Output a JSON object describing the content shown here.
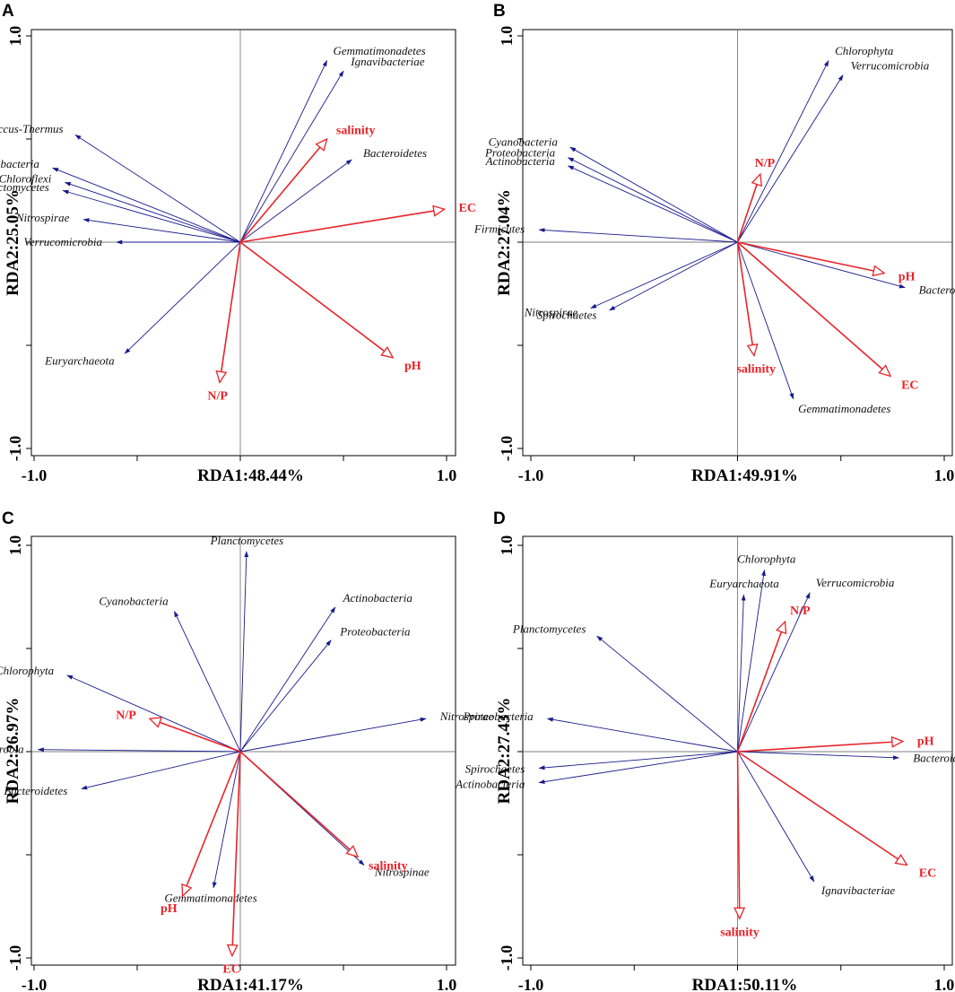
{
  "colors": {
    "species": "#1a1a8c",
    "env": "#e8242a",
    "axis": "#000000"
  },
  "chart_data": [
    {
      "panel": "A",
      "type": "scatter",
      "subtype": "rda_biplot",
      "xlabel": "RDA1:48.44%",
      "ylabel": "RDA2:25.05%",
      "xlim": [
        -1.0,
        1.0
      ],
      "ylim": [
        -1.0,
        1.0
      ],
      "x_tick_labels": [
        "-1.0",
        "1.0"
      ],
      "y_tick_labels": [
        "1.0",
        "-1.0"
      ],
      "species": [
        {
          "name": "Gemmatimonadetes",
          "x": 0.42,
          "y": 0.88
        },
        {
          "name": "Ignavibacteriae",
          "x": 0.5,
          "y": 0.83
        },
        {
          "name": "Deinococcus-Thermus",
          "x": -0.8,
          "y": 0.52
        },
        {
          "name": "Bacteroidetes",
          "x": 0.54,
          "y": 0.4
        },
        {
          "name": "Proteobacteria",
          "x": -0.91,
          "y": 0.36
        },
        {
          "name": "Chloroflexi",
          "x": -0.85,
          "y": 0.29
        },
        {
          "name": "Planctomycetes",
          "x": -0.86,
          "y": 0.25
        },
        {
          "name": "Nitrospirae",
          "x": -0.76,
          "y": 0.11
        },
        {
          "name": "Verrucomicrobia",
          "x": -0.6,
          "y": 0.0
        },
        {
          "name": "Euryarchaeota",
          "x": -0.56,
          "y": -0.54
        }
      ],
      "env": [
        {
          "name": "salinity",
          "x": 0.42,
          "y": 0.5
        },
        {
          "name": "EC",
          "x": 0.99,
          "y": 0.16
        },
        {
          "name": "N/P",
          "x": -0.1,
          "y": -0.68
        },
        {
          "name": "pH",
          "x": 0.74,
          "y": -0.56
        }
      ]
    },
    {
      "panel": "B",
      "type": "scatter",
      "subtype": "rda_biplot",
      "xlabel": "RDA1:49.91%",
      "ylabel": "RDA2:27.04%",
      "xlim": [
        -1.0,
        1.0
      ],
      "ylim": [
        -1.0,
        1.0
      ],
      "x_tick_labels": [
        "-1.0",
        "1.0"
      ],
      "y_tick_labels": [
        "1.0",
        "-1.0"
      ],
      "species": [
        {
          "name": "Chlorophyta",
          "x": 0.44,
          "y": 0.88
        },
        {
          "name": "Verrucomicrobia",
          "x": 0.51,
          "y": 0.81
        },
        {
          "name": "Cyanobacteria",
          "x": -0.81,
          "y": 0.46
        },
        {
          "name": "Proteobacteria",
          "x": -0.82,
          "y": 0.41
        },
        {
          "name": "Actinobacteria",
          "x": -0.82,
          "y": 0.37
        },
        {
          "name": "Firmicutes",
          "x": -0.96,
          "y": 0.06
        },
        {
          "name": "Nitrospirae",
          "x": -0.71,
          "y": -0.32
        },
        {
          "name": "Spirochaetes",
          "x": -0.62,
          "y": -0.33
        },
        {
          "name": "Bacteroidetes",
          "x": 0.81,
          "y": -0.22
        },
        {
          "name": "Gemmatimonadetes",
          "x": 0.27,
          "y": -0.76
        }
      ],
      "env": [
        {
          "name": "N/P",
          "x": 0.11,
          "y": 0.33
        },
        {
          "name": "pH",
          "x": 0.71,
          "y": -0.15
        },
        {
          "name": "salinity",
          "x": 0.08,
          "y": -0.55
        },
        {
          "name": "EC",
          "x": 0.74,
          "y": -0.65
        }
      ]
    },
    {
      "panel": "C",
      "type": "scatter",
      "subtype": "rda_biplot",
      "xlabel": "RDA1:41.17%",
      "ylabel": "RDA2:26.97%",
      "xlim": [
        -1.0,
        1.0
      ],
      "ylim": [
        -1.0,
        1.0
      ],
      "x_tick_labels": [
        "-1.0",
        "1.0"
      ],
      "y_tick_labels": [
        "1.0",
        "-1.0"
      ],
      "species": [
        {
          "name": "Planctomycetes",
          "x": 0.03,
          "y": 0.97
        },
        {
          "name": "Actinobacteria",
          "x": 0.46,
          "y": 0.7
        },
        {
          "name": "Cyanobacteria",
          "x": -0.32,
          "y": 0.68
        },
        {
          "name": "Proteobacteria",
          "x": 0.44,
          "y": 0.54
        },
        {
          "name": "Chlorophyta",
          "x": -0.84,
          "y": 0.37
        },
        {
          "name": "Nitrospirae",
          "x": 0.9,
          "y": 0.16
        },
        {
          "name": "Verrucomicrobia",
          "x": -0.98,
          "y": 0.01
        },
        {
          "name": "Bacteroidetes",
          "x": -0.77,
          "y": -0.18
        },
        {
          "name": "Nitrospinae",
          "x": 0.6,
          "y": -0.55
        },
        {
          "name": "Gemmatimonadetes",
          "x": -0.13,
          "y": -0.66
        }
      ],
      "env": [
        {
          "name": "N/P",
          "x": -0.44,
          "y": 0.16
        },
        {
          "name": "salinity",
          "x": 0.57,
          "y": -0.51
        },
        {
          "name": "pH",
          "x": -0.28,
          "y": -0.7
        },
        {
          "name": "EC",
          "x": -0.04,
          "y": -0.99
        }
      ]
    },
    {
      "panel": "D",
      "type": "scatter",
      "subtype": "rda_biplot",
      "xlabel": "RDA1:50.11%",
      "ylabel": "RDA2:27.43%",
      "xlim": [
        -1.0,
        1.0
      ],
      "ylim": [
        -1.0,
        1.0
      ],
      "x_tick_labels": [
        "-1.0",
        "1.0"
      ],
      "y_tick_labels": [
        "1.0",
        "-1.0"
      ],
      "species": [
        {
          "name": "Chlorophyta",
          "x": 0.13,
          "y": 0.88
        },
        {
          "name": "Euryarchaeota",
          "x": 0.03,
          "y": 0.76
        },
        {
          "name": "Verrucomicrobia",
          "x": 0.35,
          "y": 0.77
        },
        {
          "name": "Planctomycetes",
          "x": -0.68,
          "y": 0.56
        },
        {
          "name": "Proteobacteria",
          "x": -0.92,
          "y": 0.16
        },
        {
          "name": "Spirochaetes",
          "x": -0.96,
          "y": -0.08
        },
        {
          "name": "Actinobacteria",
          "x": -0.96,
          "y": -0.15
        },
        {
          "name": "Bacteroidetes",
          "x": 0.78,
          "y": -0.03
        },
        {
          "name": "Ignavibacteriae",
          "x": 0.37,
          "y": -0.63
        }
      ],
      "env": [
        {
          "name": "N/P",
          "x": 0.23,
          "y": 0.63
        },
        {
          "name": "pH",
          "x": 0.8,
          "y": 0.05
        },
        {
          "name": "EC",
          "x": 0.82,
          "y": -0.55
        },
        {
          "name": "salinity",
          "x": 0.01,
          "y": -0.81
        }
      ]
    }
  ]
}
